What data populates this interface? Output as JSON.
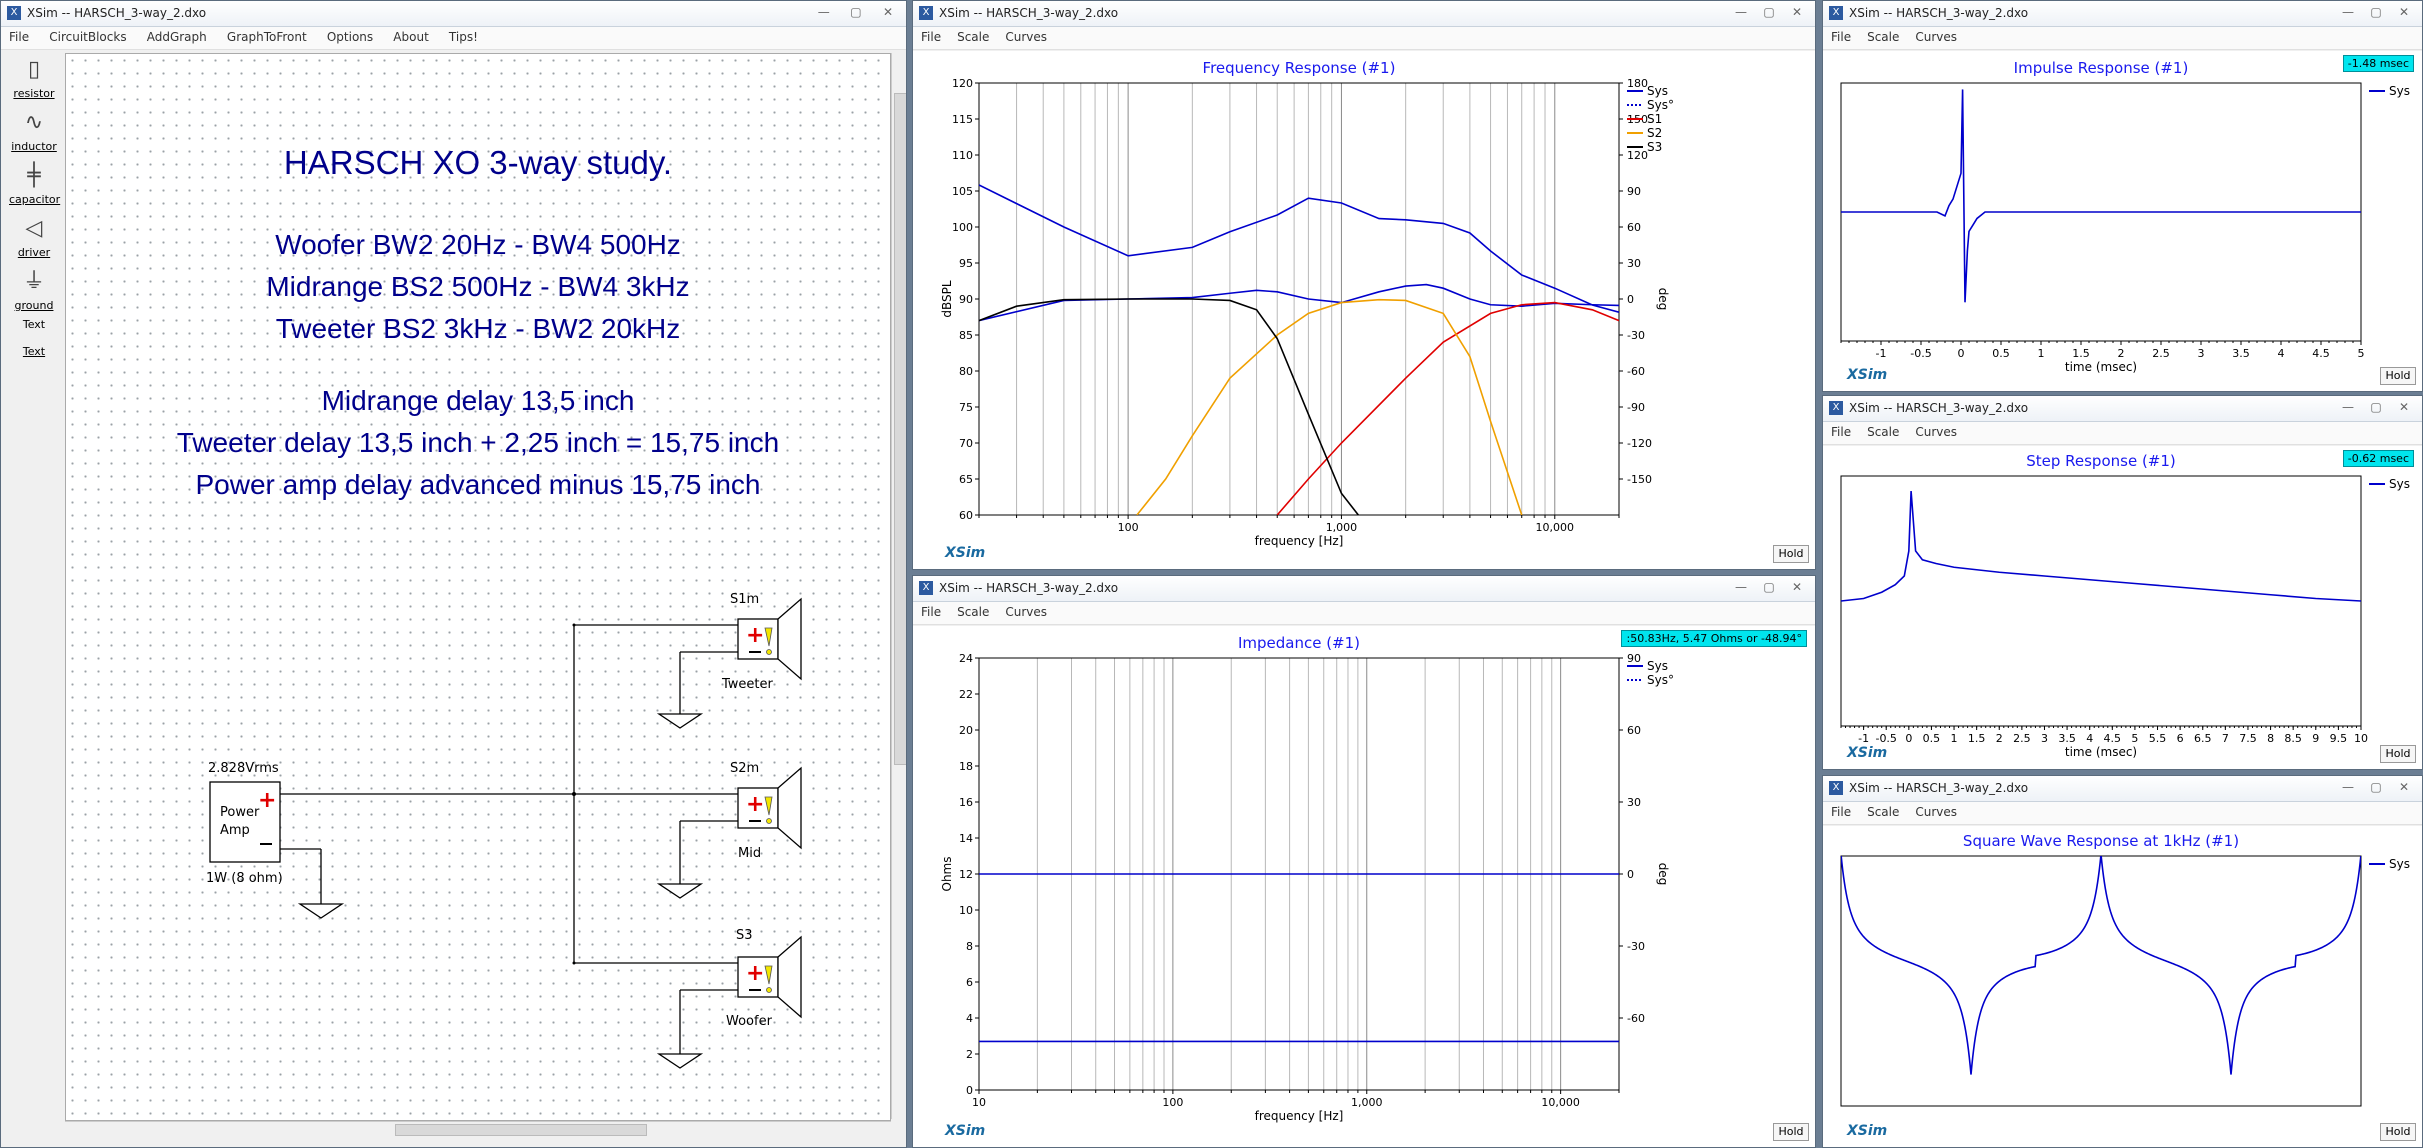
{
  "main": {
    "title": "XSim -- HARSCH_3-way_2.dxo",
    "menu": [
      "File",
      "CircuitBlocks",
      "AddGraph",
      "GraphToFront",
      "Options",
      "About",
      "Tips!"
    ],
    "palette": [
      "resistor",
      "inductor",
      "capacitor",
      "driver",
      "ground",
      "Text",
      "Text"
    ],
    "heading": "HARSCH XO 3-way study.",
    "lines": [
      "Woofer BW2 20Hz - BW4 500Hz",
      "Midrange BS2 500Hz - BW4 3kHz",
      "Tweeter BS2 3kHz - BW2 20kHz",
      "Midrange delay 13,5 inch",
      "Tweeter delay 13,5 inch + 2,25 inch = 15,75 inch",
      "Power amp delay advanced minus 15,75 inch"
    ],
    "schematic": {
      "amp_voltage": "2.828Vrms",
      "amp_label_1": "Power",
      "amp_label_2": "Amp",
      "amp_power": "1W (8 ohm)",
      "drivers": [
        {
          "id": "S1m",
          "name": "Tweeter"
        },
        {
          "id": "S2m",
          "name": "Mid"
        },
        {
          "id": "S3",
          "name": "Woofer"
        }
      ]
    }
  },
  "graph_menu": [
    "File",
    "Scale",
    "Curves"
  ],
  "window_title": "XSim -- HARSCH_3-way_2.dxo",
  "hold": "Hold",
  "brand": "XSim",
  "freq": {
    "chart_data": {
      "type": "line",
      "title": "Frequency Response (#1)",
      "xlabel": "frequency [Hz]",
      "ylabel": "dBSPL",
      "ylabel_right": "deg",
      "x_scale": "log",
      "xlim": [
        20,
        20000
      ],
      "ylim": [
        60,
        120
      ],
      "y2lim": [
        -180,
        180
      ],
      "y_ticks": [
        60,
        65,
        70,
        75,
        80,
        85,
        90,
        95,
        100,
        105,
        110,
        115,
        120
      ],
      "y2_ticks": [
        -150,
        -120,
        -90,
        -60,
        -30,
        0,
        30,
        60,
        90,
        120,
        150,
        180
      ],
      "x_tick_labels": [
        "100",
        "1,000",
        "10,000"
      ],
      "legend": [
        "Sys",
        "Sys°",
        "S1",
        "S2",
        "S3"
      ],
      "legend_position": "top-right",
      "series": [
        {
          "name": "Sys",
          "color": "#0000cc",
          "axis": "left",
          "x": [
            20,
            50,
            100,
            200,
            300,
            400,
            500,
            700,
            1000,
            1500,
            2000,
            2500,
            3000,
            4000,
            5000,
            7000,
            10000,
            15000,
            20000
          ],
          "y": [
            87,
            89.8,
            90,
            90.2,
            90.8,
            91.2,
            91,
            90,
            89.5,
            91,
            91.8,
            92,
            91.5,
            90,
            89.2,
            89,
            89.4,
            89.2,
            89.1
          ]
        },
        {
          "name": "Sys°",
          "color": "#0000cc",
          "axis": "right",
          "x": [
            20,
            50,
            100,
            200,
            300,
            500,
            700,
            1000,
            1500,
            2000,
            3000,
            4000,
            5000,
            7000,
            10000,
            15000,
            20000
          ],
          "y": [
            95,
            60,
            36,
            43,
            56,
            70,
            84,
            80,
            67,
            66,
            63,
            55,
            40,
            20,
            9,
            -5,
            -11
          ]
        },
        {
          "name": "S1",
          "color": "#e00000",
          "axis": "left",
          "x": [
            500,
            700,
            1000,
            2000,
            3000,
            5000,
            7000,
            10000,
            15000,
            20000
          ],
          "y": [
            60,
            65,
            70,
            79,
            84,
            88,
            89.2,
            89.5,
            88.5,
            87
          ]
        },
        {
          "name": "S2",
          "color": "#f0a000",
          "axis": "left",
          "x": [
            110,
            150,
            200,
            300,
            500,
            700,
            1000,
            1500,
            2000,
            3000,
            4000,
            5000,
            7000
          ],
          "y": [
            60,
            65,
            71,
            79,
            85,
            88,
            89.5,
            89.9,
            89.8,
            88,
            82,
            73,
            60
          ]
        },
        {
          "name": "S3",
          "color": "#000000",
          "axis": "left",
          "x": [
            20,
            30,
            50,
            100,
            200,
            300,
            400,
            500,
            700,
            1000,
            1200
          ],
          "y": [
            87,
            89,
            89.9,
            90,
            90,
            89.8,
            88.5,
            84.5,
            74,
            63,
            60
          ]
        }
      ]
    }
  },
  "impedance": {
    "readout": ":50.83Hz, 5.47 Ohms or -48.94°",
    "chart_data": {
      "type": "line",
      "title": "Impedance (#1)",
      "xlabel": "frequency [Hz]",
      "ylabel": "Ohms",
      "ylabel_right": "deg",
      "x_scale": "log",
      "xlim": [
        10,
        20000
      ],
      "ylim": [
        0,
        24
      ],
      "y2lim": [
        -90,
        90
      ],
      "y_ticks": [
        0,
        2,
        4,
        6,
        8,
        10,
        12,
        14,
        16,
        18,
        20,
        22,
        24
      ],
      "y2_ticks": [
        -60,
        -30,
        0,
        30,
        60,
        90
      ],
      "x_tick_labels": [
        "10",
        "100",
        "1,000",
        "10,000"
      ],
      "legend": [
        "Sys",
        "Sys°"
      ],
      "legend_position": "top-right",
      "series": [
        {
          "name": "Sys",
          "color": "#0000cc",
          "axis": "left",
          "x": [
            10,
            20000
          ],
          "y": [
            2.7,
            2.7
          ]
        },
        {
          "name": "Sys°",
          "color": "#0000cc",
          "axis": "right",
          "x": [
            10,
            20000
          ],
          "y": [
            0,
            0
          ]
        }
      ]
    }
  },
  "impulse": {
    "readout": "-1.48 msec",
    "chart_data": {
      "type": "line",
      "title": "Impulse Response (#1)",
      "xlabel": "time (msec)",
      "xlim": [
        -1.5,
        5
      ],
      "ylim": [
        -1,
        1
      ],
      "x_tick_labels": [
        "-1",
        "-0.5",
        "0",
        "0.5",
        "1",
        "1.5",
        "2",
        "2.5",
        "3",
        "3.5",
        "4",
        "4.5",
        "5"
      ],
      "legend": [
        "Sys"
      ],
      "legend_position": "top-right",
      "series": [
        {
          "name": "Sys",
          "color": "#0000cc",
          "x": [
            -1.5,
            -0.3,
            -0.2,
            -0.15,
            -0.1,
            -0.05,
            0,
            0.02,
            0.05,
            0.08,
            0.1,
            0.15,
            0.2,
            0.3,
            0.5,
            5
          ],
          "y": [
            0,
            0,
            -0.03,
            0.05,
            0.1,
            0.2,
            0.3,
            0.95,
            -0.7,
            -0.3,
            -0.15,
            -0.1,
            -0.05,
            0,
            0,
            0
          ]
        }
      ]
    }
  },
  "step": {
    "readout": "-0.62 msec",
    "chart_data": {
      "type": "line",
      "title": "Step Response (#1)",
      "xlabel": "time (msec)",
      "xlim": [
        -1.5,
        10
      ],
      "ylim": [
        -1,
        1
      ],
      "x_tick_labels": [
        "-1",
        "-0.5",
        "0",
        "0.5",
        "1",
        "1.5",
        "2",
        "2.5",
        "3",
        "3.5",
        "4",
        "4.5",
        "5",
        "5.5",
        "6",
        "6.5",
        "7",
        "7.5",
        "8",
        "8.5",
        "9",
        "9.5",
        "10"
      ],
      "legend": [
        "Sys"
      ],
      "legend_position": "top-right",
      "series": [
        {
          "name": "Sys",
          "color": "#0000cc",
          "x": [
            -1.5,
            -1.0,
            -0.6,
            -0.3,
            -0.1,
            0,
            0.05,
            0.15,
            0.3,
            0.6,
            1,
            2,
            3,
            4,
            5,
            6,
            7,
            8,
            9,
            10
          ],
          "y": [
            0,
            0.02,
            0.07,
            0.13,
            0.2,
            0.4,
            0.88,
            0.4,
            0.33,
            0.3,
            0.27,
            0.23,
            0.2,
            0.17,
            0.14,
            0.11,
            0.08,
            0.05,
            0.02,
            0
          ]
        }
      ]
    }
  },
  "square": {
    "chart_data": {
      "type": "line",
      "title": "Square Wave Response at 1kHz (#1)",
      "legend": [
        "Sys"
      ],
      "legend_position": "top-right",
      "series": [
        {
          "name": "Sys",
          "color": "#0000cc"
        }
      ]
    }
  }
}
